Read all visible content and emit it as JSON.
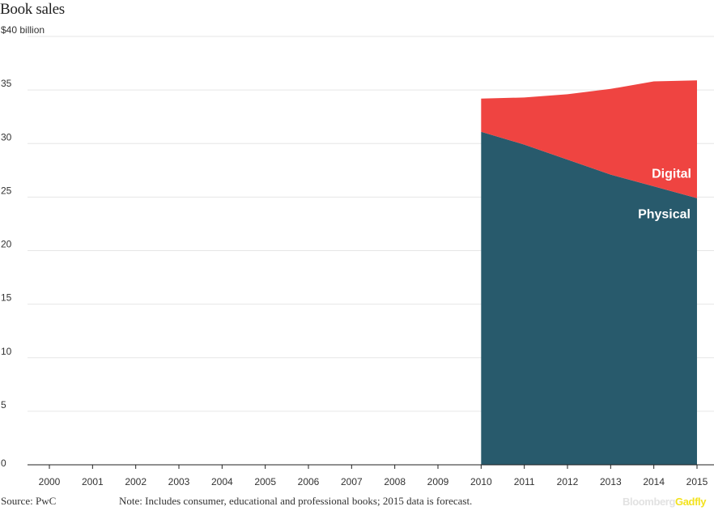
{
  "title": "Book sales",
  "unit_label": "$40 billion",
  "footer": {
    "source": "Source: PwC",
    "note": "Note: Includes consumer, educational and professional books; 2015 data is forecast."
  },
  "brand": {
    "part1": "Bloomberg",
    "part2": "Gadfly"
  },
  "colors": {
    "physical": "#285a6c",
    "digital": "#ef4441",
    "grid": "#e6e6e6",
    "axis": "#222222"
  },
  "chart_data": {
    "type": "area",
    "stacked": true,
    "title": "Book sales",
    "xlabel": "",
    "ylabel": "$40 billion",
    "x": [
      "2000",
      "2001",
      "2002",
      "2003",
      "2004",
      "2005",
      "2006",
      "2007",
      "2008",
      "2009",
      "2010",
      "2011",
      "2012",
      "2013",
      "2014",
      "2015"
    ],
    "xlim": [
      "2000",
      "2015"
    ],
    "ylim": [
      0,
      40
    ],
    "yticks": [
      "$40 billion",
      "35",
      "30",
      "25",
      "20",
      "15",
      "10",
      "5",
      "0"
    ],
    "ytick_values": [
      40,
      35,
      30,
      25,
      20,
      15,
      10,
      5,
      0
    ],
    "grid": true,
    "legend": "inline labels on the right",
    "series": [
      {
        "name": "Physical",
        "x": [
          "2010",
          "2011",
          "2012",
          "2013",
          "2014",
          "2015"
        ],
        "values": [
          31.1,
          29.9,
          28.5,
          27.1,
          26.0,
          24.9
        ]
      },
      {
        "name": "Digital",
        "x": [
          "2010",
          "2011",
          "2012",
          "2013",
          "2014",
          "2015"
        ],
        "values": [
          3.1,
          4.4,
          6.1,
          8.0,
          9.8,
          11.0
        ]
      }
    ]
  }
}
